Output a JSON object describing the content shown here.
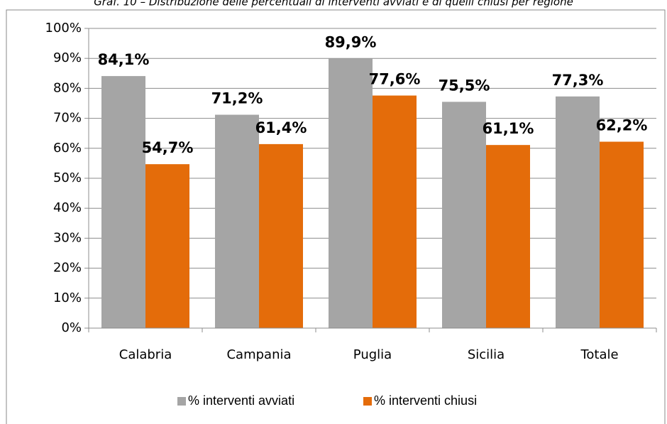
{
  "chart_data": {
    "type": "bar",
    "title": "Graf. 10 – Distribuzione delle percentuali di interventi avviati e di quelli chiusi per regione",
    "categories": [
      "Calabria",
      "Campania",
      "Puglia",
      "Sicilia",
      "Totale"
    ],
    "series": [
      {
        "name": "% interventi avviati",
        "color": "#a5a5a5",
        "values": [
          84.1,
          71.2,
          89.9,
          75.5,
          77.3
        ],
        "value_labels": [
          "84,1%",
          "71,2%",
          "89,9%",
          "75,5%",
          "77,3%"
        ]
      },
      {
        "name": "% interventi chiusi",
        "color": "#e46c0a",
        "values": [
          54.7,
          61.4,
          77.6,
          61.1,
          62.2
        ],
        "value_labels": [
          "54,7%",
          "61,4%",
          "77,6%",
          "61,1%",
          "62,2%"
        ]
      }
    ],
    "ylim": [
      0,
      100
    ],
    "yticks": [
      {
        "value": 0,
        "label": "0%"
      },
      {
        "value": 10,
        "label": "10%"
      },
      {
        "value": 20,
        "label": "20%"
      },
      {
        "value": 30,
        "label": "30%"
      },
      {
        "value": 40,
        "label": "40%"
      },
      {
        "value": 50,
        "label": "50%"
      },
      {
        "value": 60,
        "label": "60%"
      },
      {
        "value": 70,
        "label": "70%"
      },
      {
        "value": 80,
        "label": "80%"
      },
      {
        "value": 90,
        "label": "90%"
      },
      {
        "value": 100,
        "label": "100%"
      }
    ],
    "grid": true,
    "legend": "bottom"
  }
}
